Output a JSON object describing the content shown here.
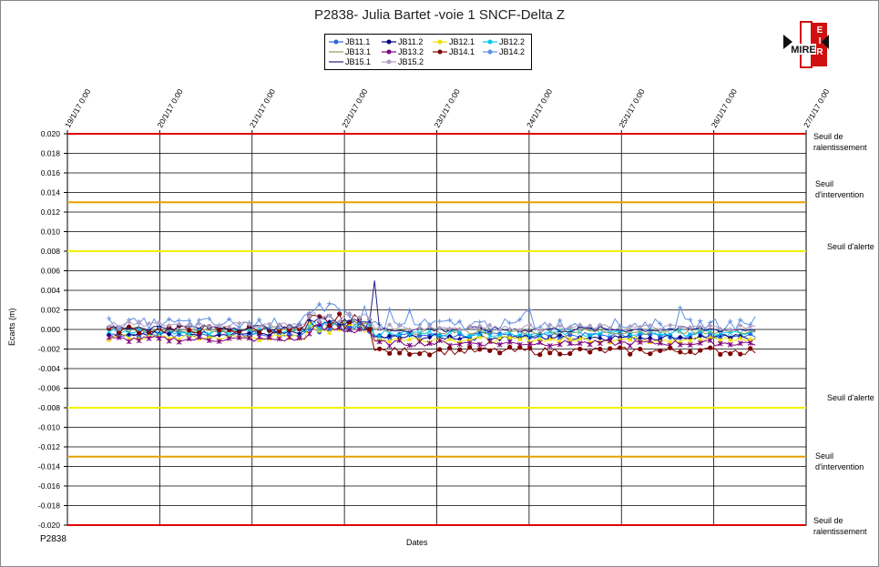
{
  "title": "P2838- Julia Bartet -voie 1 SNCF-Delta Z",
  "footer_label": "P2838",
  "logo_text": "MIRE",
  "chart_data": {
    "type": "line",
    "title": "P2838- Julia Bartet -voie 1 SNCF-Delta Z",
    "xlabel": "Dates",
    "ylabel": "Ecarts (m)",
    "ylim": [
      -0.02,
      0.02
    ],
    "xlim": [
      "2017-01-19",
      "2017-01-27"
    ],
    "x_tick_labels": [
      "19/1/17 0:00",
      "20/1/17 0:00",
      "21/1/17 0:00",
      "22/1/17 0:00",
      "23/1/17 0:00",
      "24/1/17 0:00",
      "25/1/17 0:00",
      "26/1/17 0:00",
      "27/1/17 0:00"
    ],
    "y_tick_labels": [
      "0.020",
      "0.018",
      "0.016",
      "0.014",
      "0.012",
      "0.010",
      "0.008",
      "0.006",
      "0.004",
      "0.002",
      "0.000",
      "-0.002",
      "-0.004",
      "-0.006",
      "-0.008",
      "-0.010",
      "-0.012",
      "-0.014",
      "-0.016",
      "-0.018",
      "-0.020"
    ],
    "grid": true,
    "legend_position": "top-center",
    "thresholds": [
      {
        "label": "Seuil de ralentissement",
        "value": 0.02,
        "color": "#e00000"
      },
      {
        "label": "Seuil d'intervention",
        "value": 0.013,
        "color": "#e8a000"
      },
      {
        "label": "Seuil d'alerte",
        "value": 0.008,
        "color": "#f0f000"
      },
      {
        "label": "Seuil d'alerte",
        "value": -0.008,
        "color": "#f0f000"
      },
      {
        "label": "Seuil d'intervention",
        "value": -0.013,
        "color": "#e8a000"
      },
      {
        "label": "Seuil de ralentissement",
        "value": -0.02,
        "color": "#e00000"
      }
    ],
    "series": [
      {
        "name": "JB11.1",
        "color": "#3060e0",
        "marker": "circle",
        "base": -0.0005,
        "noise": 0.0003,
        "before": 0.0,
        "after": -0.0006
      },
      {
        "name": "JB11.2",
        "color": "#000080",
        "marker": "diamond",
        "base": -0.0004,
        "noise": 0.0003,
        "before": 0.0002,
        "after": -0.0008
      },
      {
        "name": "JB12.1",
        "color": "#f0e000",
        "marker": "triangle",
        "base": -0.0008,
        "noise": 0.0003,
        "before": 0.0,
        "after": -0.001
      },
      {
        "name": "JB12.2",
        "color": "#00c8f0",
        "marker": "x",
        "base": -0.0002,
        "noise": 0.0003,
        "before": 0.0002,
        "after": -0.0004
      },
      {
        "name": "JB13.1",
        "color": "#90a050",
        "marker": "none",
        "base": 0.0,
        "noise": 0.0003,
        "before": 0.0002,
        "after": -0.0002
      },
      {
        "name": "JB13.2",
        "color": "#800080",
        "marker": "star",
        "base": -0.001,
        "noise": 0.0003,
        "before": -0.0002,
        "after": -0.0014
      },
      {
        "name": "JB14.1",
        "color": "#800000",
        "marker": "circle",
        "base": 0.0,
        "noise": 0.0004,
        "before": 0.0005,
        "after": -0.0022
      },
      {
        "name": "JB14.2",
        "color": "#6090e0",
        "marker": "plus",
        "base": 0.0006,
        "noise": 0.0006,
        "before": 0.001,
        "after": 0.0005
      },
      {
        "name": "JB15.1",
        "color": "#202080",
        "marker": "dash",
        "base": 0.0002,
        "noise": 0.0003,
        "before": 0.0008,
        "after": 0.0
      },
      {
        "name": "JB15.2",
        "color": "#b0a0c0",
        "marker": "diamond",
        "base": 0.0005,
        "noise": 0.0003,
        "before": 0.001,
        "after": 0.0002
      }
    ]
  }
}
